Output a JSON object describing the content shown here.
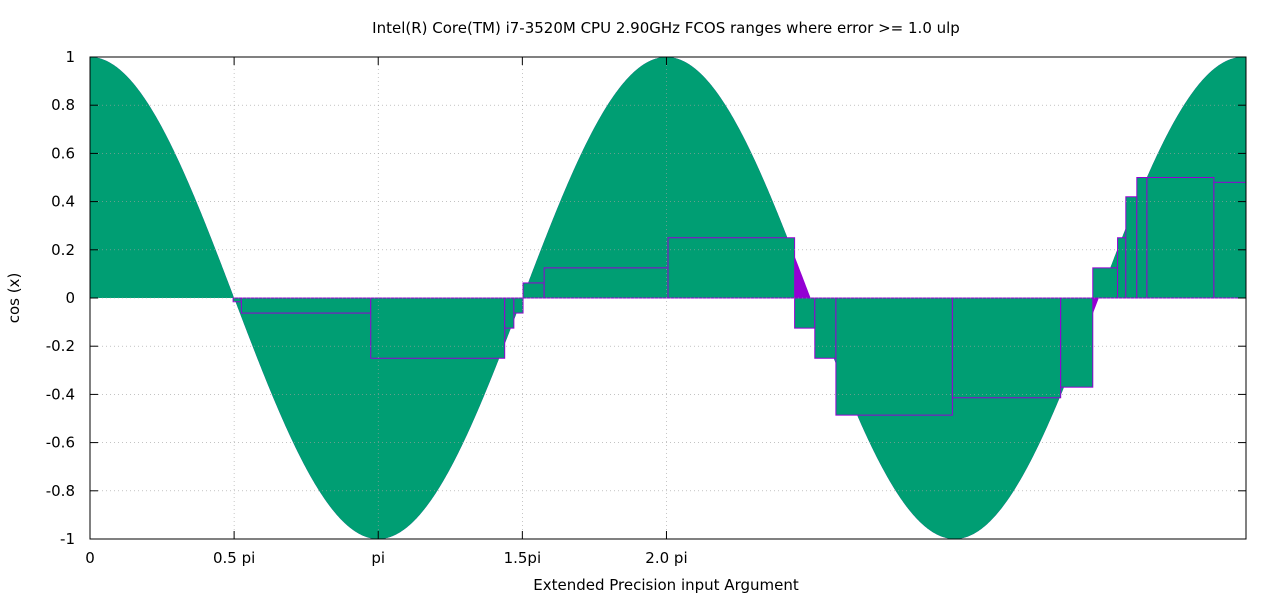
{
  "chart_data": {
    "type": "area",
    "title": "Intel(R) Core(TM) i7-3520M CPU  2.90GHz FCOS ranges where error >= 1.0 ulp",
    "xlabel": "Extended Precision input Argument",
    "ylabel": "cos (x)",
    "xlim": [
      0,
      12.6
    ],
    "ylim": [
      -1,
      1
    ],
    "grid": true,
    "x_ticks": [
      {
        "value": 0,
        "label": "0"
      },
      {
        "value": 1.5708,
        "label": "0.5 pi"
      },
      {
        "value": 3.1416,
        "label": "pi"
      },
      {
        "value": 4.7124,
        "label": "1.5pi"
      },
      {
        "value": 6.2832,
        "label": "2.0 pi"
      }
    ],
    "y_ticks": [
      {
        "value": 1,
        "label": "1"
      },
      {
        "value": 0.8,
        "label": "0.8"
      },
      {
        "value": 0.6,
        "label": "0.6"
      },
      {
        "value": 0.4,
        "label": "0.4"
      },
      {
        "value": 0.2,
        "label": "0.2"
      },
      {
        "value": 0,
        "label": "0"
      },
      {
        "value": -0.2,
        "label": "-0.2"
      },
      {
        "value": -0.4,
        "label": "-0.4"
      },
      {
        "value": -0.6,
        "label": "-0.6"
      },
      {
        "value": -0.8,
        "label": "-0.8"
      },
      {
        "value": -1,
        "label": "-1"
      }
    ],
    "series": [
      {
        "function": "cos(x)",
        "color": "#009e73",
        "style": "filled-to-zero"
      },
      {
        "style": "error-range-boxes",
        "color": "#9400d3",
        "ranges": [
          {
            "x_start": 1.56,
            "x_end": 1.65,
            "y": -0.0156
          },
          {
            "x_start": 1.65,
            "x_end": 3.06,
            "y": -0.0625
          },
          {
            "x_start": 3.06,
            "x_end": 4.52,
            "y": -0.25
          },
          {
            "x_start": 4.52,
            "x_end": 4.62,
            "y": -0.125
          },
          {
            "x_start": 4.62,
            "x_end": 4.72,
            "y": -0.0625
          },
          {
            "x_start": 4.72,
            "x_end": 4.95,
            "y": 0.0625
          },
          {
            "x_start": 4.95,
            "x_end": 6.3,
            "y": 0.125
          },
          {
            "x_start": 6.3,
            "x_end": 7.68,
            "y": 0.25
          },
          {
            "x_start": 7.68,
            "x_end": 7.9,
            "y": -0.125
          },
          {
            "x_start": 7.9,
            "x_end": 8.13,
            "y": -0.25
          },
          {
            "x_start": 8.13,
            "x_end": 9.4,
            "y": -0.486
          },
          {
            "x_start": 9.4,
            "x_end": 10.58,
            "y": -0.414
          },
          {
            "x_start": 10.58,
            "x_end": 10.93,
            "y": -0.37
          },
          {
            "x_start": 10.93,
            "x_end": 11.2,
            "y": 0.125
          },
          {
            "x_start": 11.2,
            "x_end": 11.29,
            "y": 0.25
          },
          {
            "x_start": 11.29,
            "x_end": 11.41,
            "y": 0.42
          },
          {
            "x_start": 11.41,
            "x_end": 11.52,
            "y": 0.5
          },
          {
            "x_start": 11.52,
            "x_end": 12.25,
            "y": 0.5
          },
          {
            "x_start": 12.25,
            "x_end": 12.6,
            "y": 0.48
          }
        ]
      }
    ]
  }
}
